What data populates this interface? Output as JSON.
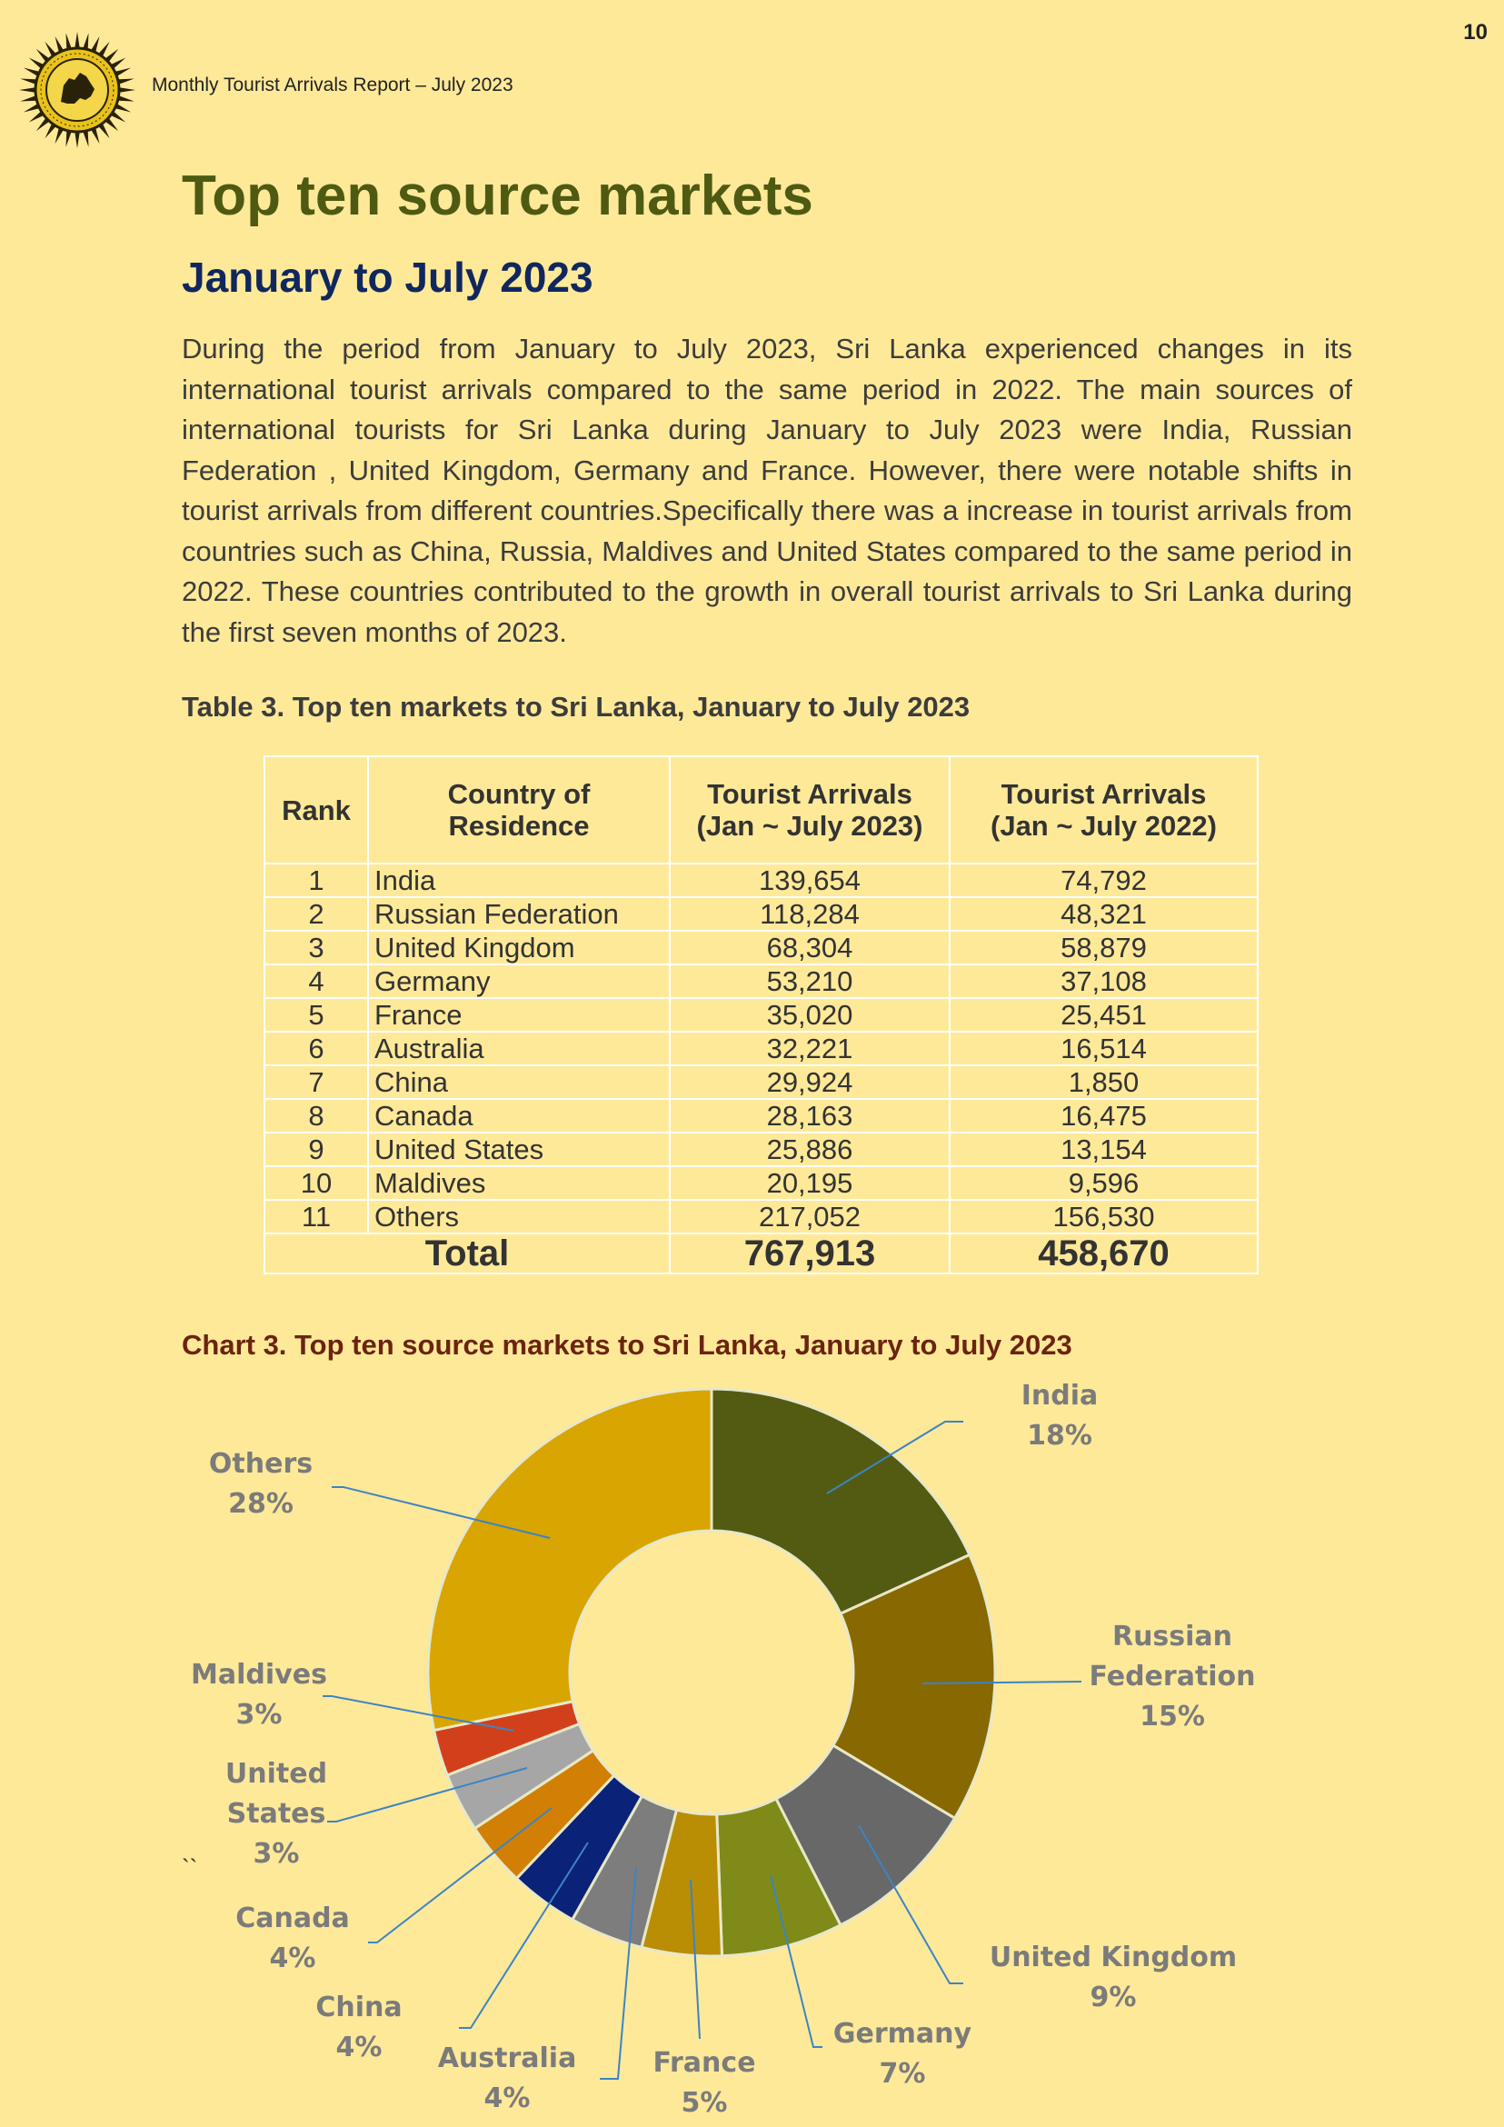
{
  "page": {
    "number": "10",
    "header": "Monthly Tourist Arrivals Report – July 2023"
  },
  "title": "Top ten source markets",
  "subtitle": "January to July 2023",
  "intro": "During the period from January to July 2023, Sri Lanka experienced changes in its international tourist arrivals compared to the same period in 2022. The main sources of international tourists for Sri Lanka during January to July 2023 were India, Russian Federation , United Kingdom, Germany and France. However, there were notable shifts in tourist arrivals from different countries.Specifically there was a increase in tourist arrivals from countries such as China, Russia, Maldives and United States compared to the same period in 2022. These countries contributed to the growth in overall tourist arrivals to Sri Lanka during the first seven months of 2023.",
  "table": {
    "caption": "Table 3. Top ten markets to Sri Lanka, January to July  2023",
    "headers": {
      "rank": "Rank",
      "country": "Country of Residence",
      "arrivals_2023": "Tourist Arrivals (Jan ~ July 2023)",
      "arrivals_2022": "Tourist Arrivals (Jan ~ July 2022)"
    },
    "rows": [
      {
        "rank": "1",
        "country": "India",
        "y2023": "139,654",
        "y2022": "74,792"
      },
      {
        "rank": "2",
        "country": "Russian Federation",
        "y2023": "118,284",
        "y2022": "48,321"
      },
      {
        "rank": "3",
        "country": "United Kingdom",
        "y2023": "68,304",
        "y2022": "58,879"
      },
      {
        "rank": "4",
        "country": "Germany",
        "y2023": "53,210",
        "y2022": "37,108"
      },
      {
        "rank": "5",
        "country": "France",
        "y2023": "35,020",
        "y2022": "25,451"
      },
      {
        "rank": "6",
        "country": "Australia",
        "y2023": "32,221",
        "y2022": "16,514"
      },
      {
        "rank": "7",
        "country": "China",
        "y2023": "29,924",
        "y2022": "1,850"
      },
      {
        "rank": "8",
        "country": "Canada",
        "y2023": "28,163",
        "y2022": "16,475"
      },
      {
        "rank": "9",
        "country": "United States",
        "y2023": "25,886",
        "y2022": "13,154"
      },
      {
        "rank": "10",
        "country": "Maldives",
        "y2023": "20,195",
        "y2022": "9,596"
      },
      {
        "rank": "11",
        "country": "Others",
        "y2023": "217,052",
        "y2022": "156,530"
      }
    ],
    "total": {
      "label": "Total",
      "y2023": "767,913",
      "y2022": "458,670"
    }
  },
  "chart_data": {
    "type": "pie",
    "title": "Chart 3. Top ten source markets to Sri Lanka, January to  July 2023",
    "slices": [
      {
        "label": "India",
        "percent": "18%",
        "value": 139654,
        "color": "#535b12"
      },
      {
        "label": "Russian Federation",
        "percent": "15%",
        "value": 118284,
        "color": "#876801"
      },
      {
        "label": "United Kingdom",
        "percent": "9%",
        "value": 68304,
        "color": "#686868"
      },
      {
        "label": "Germany",
        "percent": "7%",
        "value": 53210,
        "color": "#7f8a18"
      },
      {
        "label": "France",
        "percent": "5%",
        "value": 35020,
        "color": "#b98d04"
      },
      {
        "label": "Australia",
        "percent": "4%",
        "value": 32221,
        "color": "#7d7d7d"
      },
      {
        "label": "China",
        "percent": "4%",
        "value": 29924,
        "color": "#0a2277"
      },
      {
        "label": "Canada",
        "percent": "4%",
        "value": 28163,
        "color": "#d27f05"
      },
      {
        "label": "United States",
        "percent": "3%",
        "value": 25886,
        "color": "#a6a6a6"
      },
      {
        "label": "Maldives",
        "percent": "3%",
        "value": 20195,
        "color": "#d2401b"
      },
      {
        "label": "Others",
        "percent": "28%",
        "value": 217052,
        "color": "#d9a500"
      }
    ]
  },
  "stray_mark": "``"
}
